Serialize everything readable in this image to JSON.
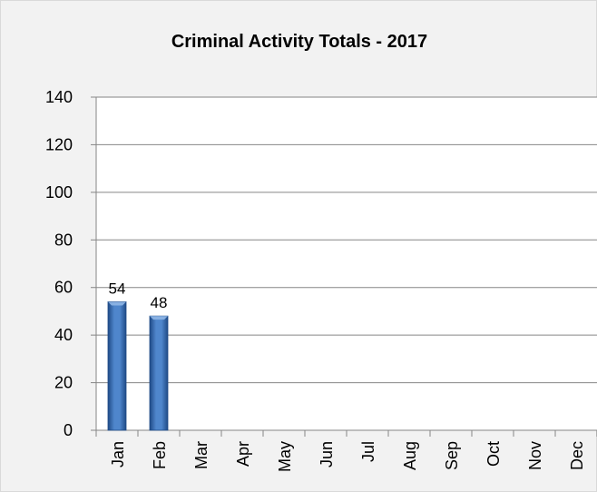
{
  "chart_data": {
    "type": "bar",
    "title": "Criminal Activity Totals - 2017",
    "xlabel": "",
    "ylabel": "",
    "categories": [
      "Jan",
      "Feb",
      "Mar",
      "Apr",
      "May",
      "Jun",
      "Jul",
      "Aug",
      "Sep",
      "Oct",
      "Nov",
      "Dec"
    ],
    "values": [
      54,
      48,
      null,
      null,
      null,
      null,
      null,
      null,
      null,
      null,
      null,
      null
    ],
    "data_labels": [
      "54",
      "48",
      "",
      "",
      "",
      "",
      "",
      "",
      "",
      "",
      "",
      ""
    ],
    "ylim": [
      0,
      140
    ],
    "yticks": [
      0,
      20,
      40,
      60,
      80,
      100,
      120,
      140
    ],
    "grid": true,
    "legend": "none",
    "colors": {
      "bar": "#4a7fc1",
      "bar_dark": "#1f4a86",
      "plot_bg": "#ffffff",
      "chart_bg": "#f2f2f2",
      "grid": "#868686",
      "axis": "#868686"
    }
  }
}
